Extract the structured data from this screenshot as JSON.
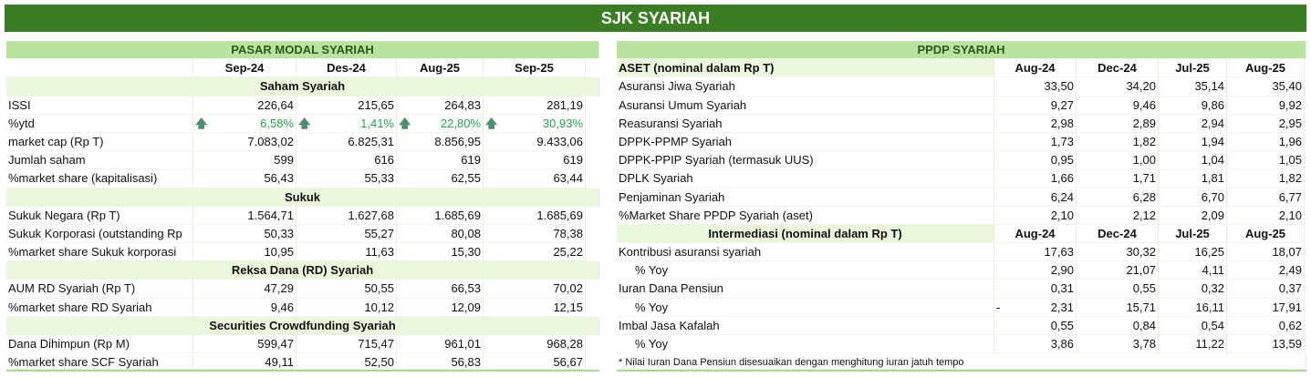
{
  "title": "SJK SYARIAH",
  "left": {
    "header": "PASAR MODAL SYARIAH",
    "columns": [
      "Sep-24",
      "Des-24",
      "Aug-25",
      "Sep-25"
    ],
    "sections": [
      {
        "title": "Saham Syariah",
        "rows": [
          {
            "label": "ISSI",
            "values": [
              "226,64",
              "215,65",
              "264,83",
              "281,19"
            ]
          },
          {
            "label": "%ytd",
            "values": [
              "6,58%",
              "1,41%",
              "22,80%",
              "30,93%"
            ],
            "trend": "up-arrow-icon"
          },
          {
            "label": "market cap (Rp T)",
            "values": [
              "7.083,02",
              "6.825,31",
              "8.856,95",
              "9.433,06"
            ]
          },
          {
            "label": "Jumlah saham",
            "values": [
              "599",
              "616",
              "619",
              "619"
            ]
          },
          {
            "label": "%market share (kapitalisasi)",
            "values": [
              "56,43",
              "55,33",
              "62,55",
              "63,44"
            ]
          }
        ]
      },
      {
        "title": "Sukuk",
        "rows": [
          {
            "label": "Sukuk Negara (Rp T)",
            "values": [
              "1.564,71",
              "1.627,68",
              "1.685,69",
              "1.685,69"
            ]
          },
          {
            "label": "Sukuk Korporasi (outstanding Rp",
            "values": [
              "50,33",
              "55,27",
              "80,08",
              "78,38"
            ]
          },
          {
            "label": "%market share Sukuk korporasi",
            "values": [
              "10,95",
              "11,63",
              "15,30",
              "25,22"
            ]
          }
        ]
      },
      {
        "title": "Reksa Dana (RD) Syariah",
        "rows": [
          {
            "label": "AUM RD Syariah (Rp T)",
            "values": [
              "47,29",
              "50,55",
              "66,53",
              "70,02"
            ]
          },
          {
            "label": "%market share RD Syariah",
            "values": [
              "9,46",
              "10,12",
              "12,09",
              "12,15"
            ]
          }
        ]
      },
      {
        "title": "Securities Crowdfunding Syariah",
        "rows": [
          {
            "label": "Dana Dihimpun (Rp M)",
            "values": [
              "599,47",
              "715,47",
              "961,01",
              "968,28"
            ]
          },
          {
            "label": "%market share SCF Syariah",
            "values": [
              "49,11",
              "52,50",
              "56,83",
              "56,67"
            ]
          }
        ]
      }
    ]
  },
  "right": {
    "header": "PPDP SYARIAH",
    "sections": [
      {
        "title": "ASET (nominal dalam Rp T)",
        "columns": [
          "Aug-24",
          "Dec-24",
          "Jul-25",
          "Aug-25"
        ],
        "rows": [
          {
            "label": "Asuransi Jiwa Syariah",
            "values": [
              "33,50",
              "34,20",
              "35,14",
              "35,40"
            ]
          },
          {
            "label": "Asuransi Umum Syariah",
            "values": [
              "9,27",
              "9,46",
              "9,86",
              "9,92"
            ]
          },
          {
            "label": "Reasuransi Syariah",
            "values": [
              "2,98",
              "2,89",
              "2,94",
              "2,95"
            ]
          },
          {
            "label": "DPPK-PPMP Syariah",
            "values": [
              "1,73",
              "1,82",
              "1,94",
              "1,96"
            ]
          },
          {
            "label": "DPPK-PPIP Syariah (termasuk UUS)",
            "values": [
              "0,95",
              "1,00",
              "1,04",
              "1,05"
            ]
          },
          {
            "label": "DPLK Syariah",
            "values": [
              "1,66",
              "1,71",
              "1,81",
              "1,82"
            ]
          },
          {
            "label": "Penjaminan Syariah",
            "values": [
              "6,24",
              "6,28",
              "6,70",
              "6,77"
            ]
          },
          {
            "label": "%Market Share PPDP Syariah (aset)",
            "values": [
              "2,10",
              "2,12",
              "2,09",
              "2,10"
            ]
          }
        ]
      },
      {
        "title": "Intermediasi (nominal dalam Rp T)",
        "columns": [
          "Aug-24",
          "Dec-24",
          "Jul-25",
          "Aug-25"
        ],
        "rows": [
          {
            "label": "Kontribusi asuransi syariah",
            "values": [
              "17,63",
              "30,32",
              "16,25",
              "18,07"
            ]
          },
          {
            "label": "% Yoy",
            "values": [
              "2,90",
              "21,07",
              "4,11",
              "2,49"
            ],
            "indent": true
          },
          {
            "label": "Iuran Dana Pensiun",
            "values": [
              "0,31",
              "0,55",
              "0,32",
              "0,37"
            ]
          },
          {
            "label": "% Yoy",
            "values": [
              "2,31",
              "15,71",
              "16,11",
              "17,91"
            ],
            "indent": true,
            "prefix": "-"
          },
          {
            "label": "Imbal Jasa Kafalah",
            "values": [
              "0,55",
              "0,84",
              "0,54",
              "0,62"
            ]
          },
          {
            "label": "% Yoy",
            "values": [
              "3,86",
              "3,78",
              "11,22",
              "13,59"
            ],
            "indent": true
          }
        ]
      }
    ],
    "note": "* Nilai Iuran Dana Pensiun disesuaikan dengan menghitung iuran jatuh tempo"
  }
}
